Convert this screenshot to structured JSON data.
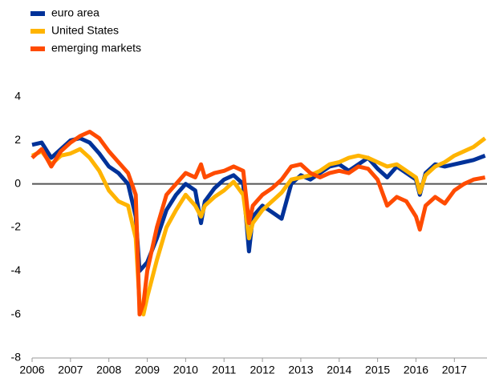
{
  "chart_data": {
    "type": "line",
    "x": [
      2006.0,
      2006.25,
      2006.5,
      2006.75,
      2007.0,
      2007.25,
      2007.5,
      2007.75,
      2008.0,
      2008.25,
      2008.5,
      2008.7,
      2008.8,
      2008.9,
      2009.0,
      2009.25,
      2009.5,
      2009.75,
      2010.0,
      2010.25,
      2010.4,
      2010.5,
      2010.75,
      2011.0,
      2011.25,
      2011.5,
      2011.65,
      2011.75,
      2012.0,
      2012.25,
      2012.5,
      2012.75,
      2013.0,
      2013.25,
      2013.5,
      2013.75,
      2014.0,
      2014.25,
      2014.5,
      2014.75,
      2015.0,
      2015.25,
      2015.5,
      2015.75,
      2016.0,
      2016.1,
      2016.25,
      2016.5,
      2016.75,
      2017.0,
      2017.25,
      2017.5,
      2017.8
    ],
    "series": [
      {
        "name": "euro area",
        "color": "#003299",
        "values": [
          1.8,
          1.9,
          1.2,
          1.6,
          2.0,
          2.1,
          1.9,
          1.4,
          0.8,
          0.5,
          0.0,
          -1.5,
          -4.0,
          -3.8,
          -3.6,
          -2.5,
          -1.2,
          -0.5,
          0.0,
          -0.3,
          -1.8,
          -0.8,
          -0.2,
          0.2,
          0.4,
          0.0,
          -3.1,
          -1.5,
          -1.0,
          -1.3,
          -1.6,
          0.0,
          0.4,
          0.2,
          0.5,
          0.8,
          0.9,
          0.6,
          0.9,
          1.2,
          0.7,
          0.3,
          0.8,
          0.5,
          0.2,
          -0.5,
          0.5,
          0.9,
          0.8,
          0.9,
          1.0,
          1.1,
          1.3
        ]
      },
      {
        "name": "United States",
        "color": "#ffb400",
        "values": [
          1.3,
          1.5,
          0.9,
          1.3,
          1.4,
          1.6,
          1.2,
          0.6,
          -0.3,
          -0.8,
          -1.0,
          -2.5,
          -5.5,
          -6.0,
          -5.2,
          -3.5,
          -2.0,
          -1.2,
          -0.5,
          -1.0,
          -1.5,
          -1.0,
          -0.6,
          -0.3,
          0.1,
          -0.5,
          -2.5,
          -1.8,
          -1.2,
          -0.8,
          -0.4,
          0.2,
          0.3,
          0.4,
          0.6,
          0.9,
          1.0,
          1.2,
          1.3,
          1.2,
          1.0,
          0.8,
          0.9,
          0.6,
          0.3,
          -0.4,
          0.4,
          0.8,
          1.0,
          1.3,
          1.5,
          1.7,
          2.1
        ]
      },
      {
        "name": "emerging markets",
        "color": "#ff4b00",
        "values": [
          1.2,
          1.6,
          0.8,
          1.5,
          1.9,
          2.2,
          2.4,
          2.1,
          1.5,
          1.0,
          0.5,
          -0.5,
          -6.0,
          -5.5,
          -4.0,
          -2.0,
          -0.5,
          0.0,
          0.5,
          0.3,
          0.9,
          0.3,
          0.5,
          0.6,
          0.8,
          0.6,
          -1.8,
          -1.0,
          -0.5,
          -0.2,
          0.2,
          0.8,
          0.9,
          0.5,
          0.3,
          0.5,
          0.6,
          0.5,
          0.8,
          0.7,
          0.2,
          -1.0,
          -0.6,
          -0.8,
          -1.5,
          -2.1,
          -1.0,
          -0.6,
          -0.9,
          -0.3,
          0.0,
          0.2,
          0.3
        ]
      }
    ],
    "xlim": [
      2006,
      2017.85
    ],
    "xticks": [
      2006,
      2007,
      2008,
      2009,
      2010,
      2011,
      2012,
      2013,
      2014,
      2015,
      2016,
      2017
    ],
    "ylim": [
      -8,
      4
    ],
    "yticks": [
      -8,
      -6,
      -4,
      -2,
      0,
      2,
      4
    ],
    "legend": "top-left"
  }
}
